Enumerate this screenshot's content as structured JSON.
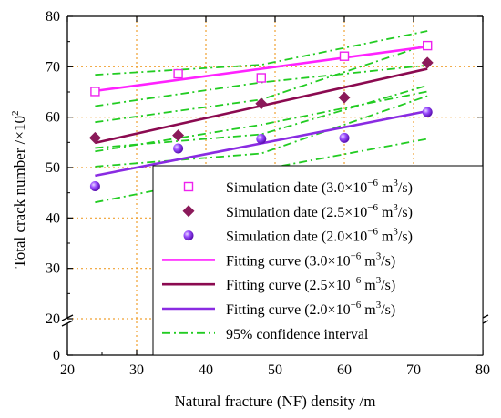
{
  "chart_data": {
    "type": "scatter",
    "xlabel": "Natural fracture (NF) density /m",
    "ylabel": "Total crack number /×10",
    "ylabel_exponent": "2",
    "xlim": [
      20,
      80
    ],
    "x_ticks": [
      20,
      30,
      40,
      50,
      60,
      70,
      80
    ],
    "y_ticks": [
      0,
      20,
      30,
      40,
      50,
      60,
      70,
      80
    ],
    "y_axis_break": {
      "between": [
        0,
        20
      ],
      "note": "broken y-axis; 0 then 20–80"
    },
    "grid": true,
    "grid_style": "dotted orange",
    "legend_position": "bottom-right",
    "series": [
      {
        "name": "Simulation date (3.0×10⁻⁶ m³/s)",
        "kind": "scatter",
        "marker": "open-square",
        "color": "#ee22ee",
        "x": [
          24,
          36,
          48,
          60,
          72
        ],
        "y": [
          65.1,
          68.6,
          67.8,
          72.1,
          74.2
        ]
      },
      {
        "name": "Simulation date (2.5×10⁻⁶ m³/s)",
        "kind": "scatter",
        "marker": "diamond",
        "color": "#8b1a5a",
        "x": [
          24,
          36,
          48,
          60,
          72
        ],
        "y": [
          55.9,
          56.4,
          62.7,
          63.9,
          70.8
        ]
      },
      {
        "name": "Simulation date (2.0×10⁻⁶ m³/s)",
        "kind": "scatter",
        "marker": "ball",
        "color": "#8a2be2",
        "x": [
          24,
          36,
          48,
          60,
          72
        ],
        "y": [
          46.3,
          53.8,
          55.7,
          55.9,
          61.0
        ]
      },
      {
        "name": "Fitting curve (3.0×10⁻⁶ m³/s)",
        "kind": "line",
        "color": "#ff22ff",
        "x": [
          24,
          72
        ],
        "y": [
          65.2,
          74.0
        ]
      },
      {
        "name": "Fitting curve (2.5×10⁻⁶ m³/s)",
        "kind": "line",
        "color": "#8b0a50",
        "x": [
          24,
          72
        ],
        "y": [
          54.9,
          69.6
        ]
      },
      {
        "name": "Fitting curve (2.0×10⁻⁶ m³/s)",
        "kind": "line",
        "color": "#8a2be2",
        "x": [
          24,
          72
        ],
        "y": [
          48.4,
          61.2
        ]
      },
      {
        "name": "95% confidence interval",
        "kind": "dashdot",
        "color": "#22cc22",
        "lines": [
          {
            "x": [
              24,
              48,
              72
            ],
            "y": [
              68.4,
              70.4,
              77.1
            ]
          },
          {
            "x": [
              24,
              48,
              72
            ],
            "y": [
              62.2,
              66.9,
              70.3
            ]
          },
          {
            "x": [
              24,
              48,
              72
            ],
            "y": [
              59.0,
              63.5,
              74.4
            ]
          },
          {
            "x": [
              24,
              48,
              72
            ],
            "y": [
              53.2,
              58.5,
              65.1
            ]
          },
          {
            "x": [
              24,
              48,
              72
            ],
            "y": [
              53.9,
              56.6,
              66.3
            ]
          },
          {
            "x": [
              24,
              48,
              72
            ],
            "y": [
              50.2,
              52.8,
              64.2
            ]
          },
          {
            "x": [
              24,
              48,
              72
            ],
            "y": [
              43.1,
              49.6,
              55.7
            ]
          }
        ]
      }
    ]
  },
  "legend": [
    {
      "key": "s30",
      "prefix": "Simulation date (3.0×10",
      "exp": "−6",
      "mid": " m",
      "exp2": "3",
      "suffix": "/s)"
    },
    {
      "key": "s25",
      "prefix": "Simulation date (2.5×10",
      "exp": "−6",
      "mid": " m",
      "exp2": "3",
      "suffix": "/s)"
    },
    {
      "key": "s20",
      "prefix": "Simulation date (2.0×10",
      "exp": "−6",
      "mid": " m",
      "exp2": "3",
      "suffix": "/s)"
    },
    {
      "key": "f30",
      "prefix": "Fitting curve (3.0×10",
      "exp": "−6",
      "mid": " m",
      "exp2": "3",
      "suffix": "/s)"
    },
    {
      "key": "f25",
      "prefix": "Fitting curve (2.5×10",
      "exp": "−6",
      "mid": " m",
      "exp2": "3",
      "suffix": "/s)"
    },
    {
      "key": "f20",
      "prefix": "Fitting curve (2.0×10",
      "exp": "−6",
      "mid": " m",
      "exp2": "3",
      "suffix": "/s)"
    },
    {
      "key": "ci",
      "prefix": "95% confidence interval",
      "exp": "",
      "mid": "",
      "exp2": "",
      "suffix": ""
    }
  ]
}
